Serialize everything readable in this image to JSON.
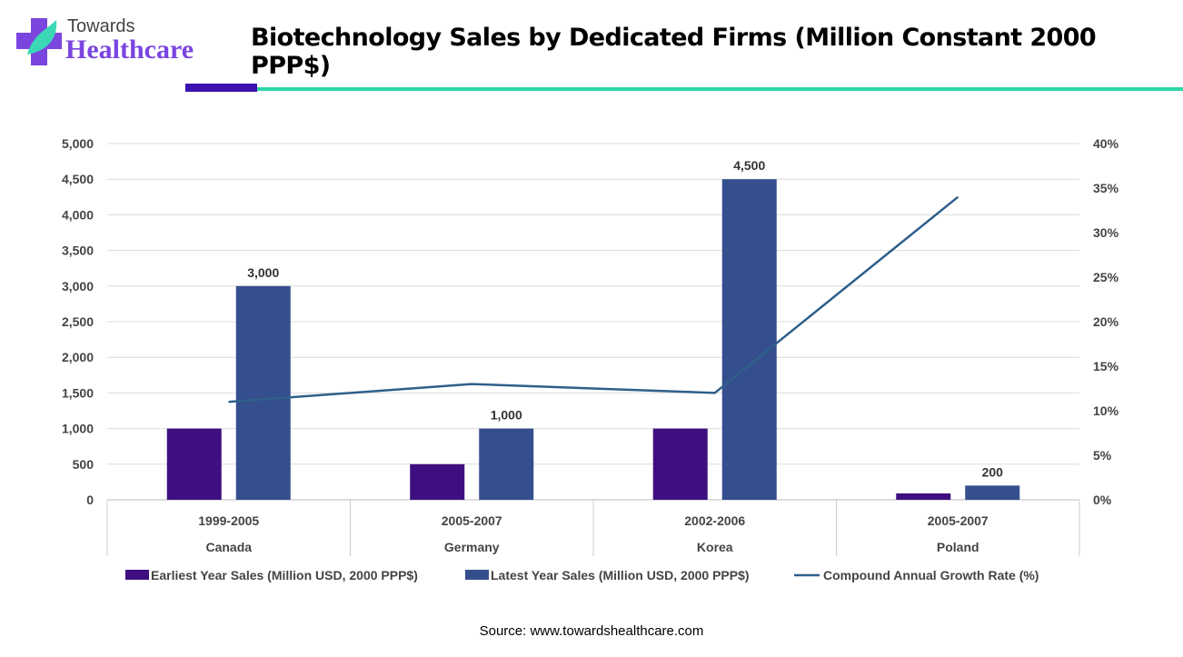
{
  "logo": {
    "line1": "Towards",
    "line2": "Healthcare"
  },
  "source": "Source: www.towardshealthcare.com",
  "chart_data": {
    "type": "bar",
    "title": "Biotechnology Sales by Dedicated Firms (Million Constant 2000 PPP$)",
    "categories": [
      {
        "period": "1999-2005",
        "country": "Canada"
      },
      {
        "period": "2005-2007",
        "country": "Germany"
      },
      {
        "period": "2002-2006",
        "country": "Korea"
      },
      {
        "period": "2005-2007",
        "country": "Poland"
      }
    ],
    "series": [
      {
        "name": "Earliest Year Sales (Million USD, 2000 PPP$)",
        "type": "bar",
        "axis": "left",
        "color": "#3f0f80",
        "values": [
          1000,
          500,
          1000,
          90
        ],
        "labels": [
          "",
          "",
          "",
          ""
        ]
      },
      {
        "name": "Latest Year Sales (Million USD, 2000 PPP$)",
        "type": "bar",
        "axis": "left",
        "color": "#354f8e",
        "values": [
          3000,
          1000,
          4500,
          200
        ],
        "labels": [
          "3,000",
          "1,000",
          "4,500",
          "200"
        ]
      },
      {
        "name": "Compound Annual Growth Rate (%)",
        "type": "line",
        "axis": "right",
        "color": "#2f5f8a",
        "values": [
          11,
          13,
          12,
          34
        ]
      }
    ],
    "y_left": {
      "range": [
        0,
        5000
      ],
      "ticks": [
        "0",
        "500",
        "1,000",
        "1,500",
        "2,000",
        "2,500",
        "3,000",
        "3,500",
        "4,000",
        "4,500",
        "5,000"
      ]
    },
    "y_right": {
      "range": [
        0,
        40
      ],
      "ticks": [
        "0%",
        "5%",
        "10%",
        "15%",
        "20%",
        "25%",
        "30%",
        "35%",
        "40%"
      ]
    },
    "grid": true,
    "legend": "bottom"
  }
}
